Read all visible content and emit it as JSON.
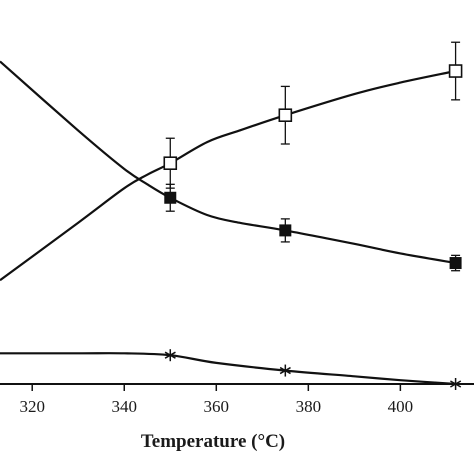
{
  "chart_data": {
    "type": "line",
    "xlabel": "Temperature (°C)",
    "ylabel": "",
    "xlim": [
      313,
      416
    ],
    "ylim": [
      0,
      100
    ],
    "x_ticks": [
      320,
      340,
      360,
      380,
      400
    ],
    "x_tick_labels": [
      "320",
      "340",
      "360",
      "380",
      "400"
    ],
    "grid": false,
    "series": [
      {
        "marker": "open-square",
        "color": "#111111",
        "x": [
          350,
          375,
          412
        ],
        "y": [
          57.5,
          70,
          81.5
        ],
        "error": [
          6.5,
          7.5,
          7.5
        ],
        "curve_x": [
          313,
          330,
          340,
          345,
          350,
          358,
          365,
          375,
          390,
          400,
          412
        ],
        "curve_y": [
          27,
          42,
          51,
          54.5,
          57.5,
          63,
          66,
          70,
          75.5,
          78.5,
          81.5
        ]
      },
      {
        "marker": "filled-square",
        "color": "#111111",
        "x": [
          350,
          375,
          412
        ],
        "y": [
          48.5,
          40,
          31.5
        ],
        "error": [
          3.5,
          3,
          2
        ],
        "curve_x": [
          313,
          330,
          340,
          345,
          350,
          358,
          365,
          375,
          390,
          400,
          412
        ],
        "curve_y": [
          84,
          66,
          56,
          52,
          48.5,
          44,
          42,
          40,
          36.5,
          34,
          31.5
        ]
      },
      {
        "marker": "asterisk",
        "color": "#111111",
        "x": [
          350,
          375,
          412
        ],
        "y": [
          7.5,
          3.5,
          0
        ],
        "error": [
          0,
          0,
          0
        ],
        "curve_x": [
          313,
          330,
          340,
          350,
          360,
          375,
          390,
          400,
          412
        ],
        "curve_y": [
          8,
          8,
          8,
          7.5,
          5.5,
          3.5,
          2,
          1,
          0
        ]
      }
    ]
  }
}
